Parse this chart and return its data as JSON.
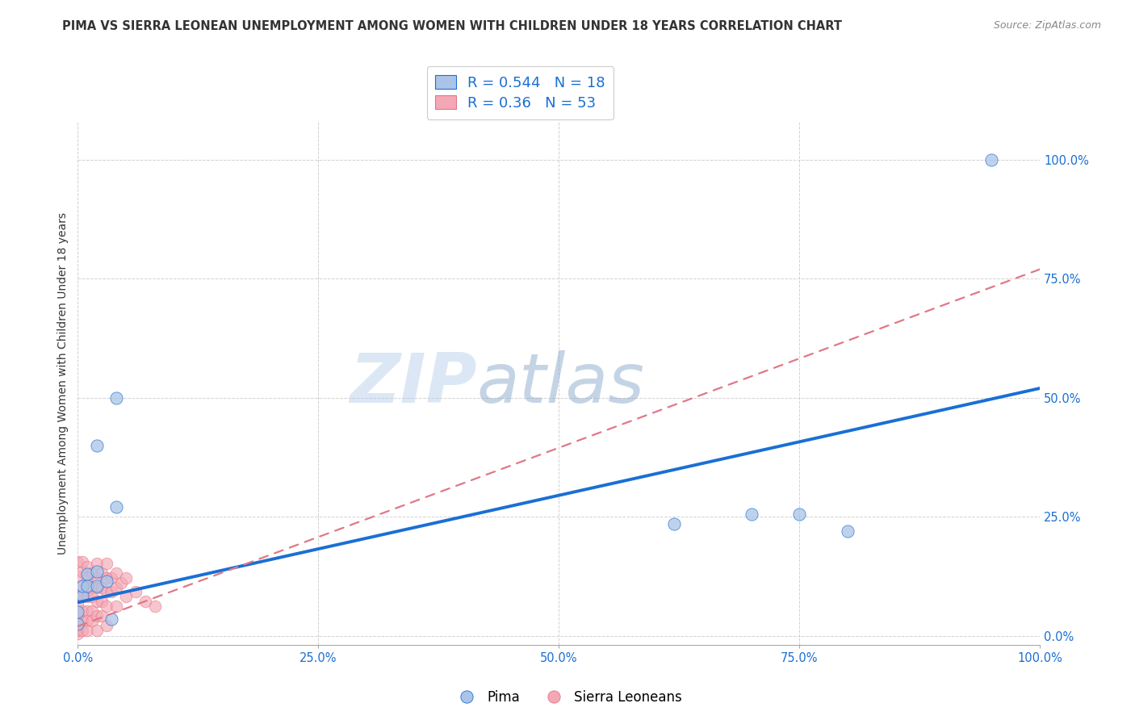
{
  "title": "PIMA VS SIERRA LEONEAN UNEMPLOYMENT AMONG WOMEN WITH CHILDREN UNDER 18 YEARS CORRELATION CHART",
  "source": "Source: ZipAtlas.com",
  "ylabel": "Unemployment Among Women with Children Under 18 years",
  "xlim": [
    0,
    1.0
  ],
  "ylim": [
    -0.02,
    1.08
  ],
  "xtick_vals": [
    0.0,
    0.25,
    0.5,
    0.75,
    1.0
  ],
  "ytick_vals": [
    0.0,
    0.25,
    0.5,
    0.75,
    1.0
  ],
  "pima_color": "#aac4e8",
  "sierra_color": "#f4a7b4",
  "pima_line_color": "#1a6fd4",
  "sierra_line_color": "#e07888",
  "pima_R": 0.544,
  "pima_N": 18,
  "sierra_R": 0.36,
  "sierra_N": 53,
  "watermark_part1": "ZIP",
  "watermark_part2": "atlas",
  "background_color": "#ffffff",
  "pima_points": [
    [
      0.02,
      0.4
    ],
    [
      0.04,
      0.27
    ],
    [
      0.0,
      0.025
    ],
    [
      0.0,
      0.05
    ],
    [
      0.005,
      0.085
    ],
    [
      0.005,
      0.105
    ],
    [
      0.01,
      0.13
    ],
    [
      0.01,
      0.105
    ],
    [
      0.02,
      0.135
    ],
    [
      0.02,
      0.105
    ],
    [
      0.03,
      0.115
    ],
    [
      0.04,
      0.5
    ],
    [
      0.62,
      0.235
    ],
    [
      0.7,
      0.255
    ],
    [
      0.75,
      0.255
    ],
    [
      0.8,
      0.22
    ],
    [
      0.95,
      1.0
    ],
    [
      0.035,
      0.035
    ]
  ],
  "sierra_points": [
    [
      0.0,
      0.155
    ],
    [
      0.0,
      0.125
    ],
    [
      0.0,
      0.065
    ],
    [
      0.0,
      0.085
    ],
    [
      0.0,
      0.042
    ],
    [
      0.0,
      0.022
    ],
    [
      0.0,
      0.005
    ],
    [
      0.0,
      0.012
    ],
    [
      0.005,
      0.135
    ],
    [
      0.005,
      0.155
    ],
    [
      0.005,
      0.105
    ],
    [
      0.005,
      0.082
    ],
    [
      0.005,
      0.052
    ],
    [
      0.005,
      0.032
    ],
    [
      0.005,
      0.012
    ],
    [
      0.01,
      0.145
    ],
    [
      0.01,
      0.122
    ],
    [
      0.01,
      0.102
    ],
    [
      0.01,
      0.082
    ],
    [
      0.01,
      0.052
    ],
    [
      0.01,
      0.032
    ],
    [
      0.01,
      0.012
    ],
    [
      0.015,
      0.132
    ],
    [
      0.015,
      0.102
    ],
    [
      0.015,
      0.082
    ],
    [
      0.015,
      0.052
    ],
    [
      0.015,
      0.032
    ],
    [
      0.02,
      0.152
    ],
    [
      0.02,
      0.122
    ],
    [
      0.02,
      0.102
    ],
    [
      0.02,
      0.072
    ],
    [
      0.02,
      0.042
    ],
    [
      0.02,
      0.012
    ],
    [
      0.025,
      0.132
    ],
    [
      0.025,
      0.102
    ],
    [
      0.025,
      0.072
    ],
    [
      0.025,
      0.042
    ],
    [
      0.03,
      0.152
    ],
    [
      0.03,
      0.122
    ],
    [
      0.03,
      0.092
    ],
    [
      0.03,
      0.062
    ],
    [
      0.03,
      0.022
    ],
    [
      0.035,
      0.122
    ],
    [
      0.035,
      0.092
    ],
    [
      0.04,
      0.132
    ],
    [
      0.04,
      0.102
    ],
    [
      0.04,
      0.062
    ],
    [
      0.045,
      0.112
    ],
    [
      0.05,
      0.122
    ],
    [
      0.05,
      0.082
    ],
    [
      0.06,
      0.092
    ],
    [
      0.07,
      0.072
    ],
    [
      0.08,
      0.062
    ]
  ],
  "pima_line": {
    "x0": 0.0,
    "y0": 0.07,
    "x1": 1.0,
    "y1": 0.52
  },
  "sierra_line": {
    "x0": 0.0,
    "y0": 0.02,
    "x1": 1.0,
    "y1": 0.77
  },
  "grid_color": "#cccccc",
  "title_fontsize": 10.5,
  "axis_fontsize": 10,
  "tick_fontsize": 10.5
}
